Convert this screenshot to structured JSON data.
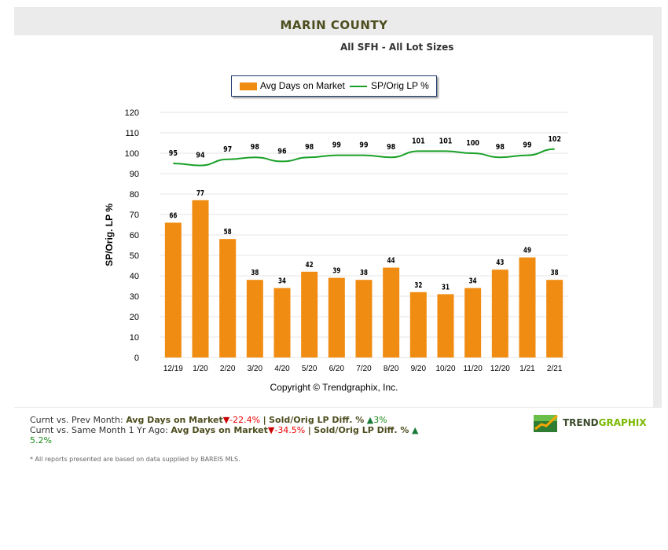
{
  "header": {
    "title": "MARIN COUNTY",
    "subtitle": "All SFH - All Lot Sizes"
  },
  "chart_data": {
    "type": "bar",
    "categories": [
      "12/19",
      "1/20",
      "2/20",
      "3/20",
      "4/20",
      "5/20",
      "6/20",
      "7/20",
      "8/20",
      "9/20",
      "10/20",
      "11/20",
      "12/20",
      "1/21",
      "2/21"
    ],
    "series": [
      {
        "name": "Avg Days on Market",
        "type": "bar",
        "color": "#f08c12",
        "values": [
          66,
          77,
          58,
          38,
          34,
          42,
          39,
          38,
          44,
          32,
          31,
          34,
          43,
          49,
          38
        ]
      },
      {
        "name": "SP/Orig LP %",
        "type": "line",
        "color": "#1aa028",
        "values": [
          95,
          94,
          97,
          98,
          96,
          98,
          99,
          99,
          98,
          101,
          101,
          100,
          98,
          99,
          102
        ]
      }
    ],
    "ylabel": "SP/Orig. LP %",
    "ylim": [
      0,
      120
    ],
    "yticks": [
      0,
      10,
      20,
      30,
      40,
      50,
      60,
      70,
      80,
      90,
      100,
      110,
      120
    ],
    "grid": true,
    "legend": "top"
  },
  "copyright": "Copyright © Trendgraphix, Inc.",
  "stats": {
    "row1_label": "Curnt vs. Prev Month:",
    "row1_metric1": "Avg Days on Market",
    "row1_value1": "-22.4%",
    "sep": "|",
    "row1_metric2": "Sold/Orig LP Diff. %",
    "row1_value2": "3%",
    "row2_label": "Curnt vs. Same Month 1 Yr Ago:",
    "row2_metric1": "Avg Days on Market",
    "row2_value1": "-34.5%",
    "row2_metric2": "Sold/Orig LP Diff. %",
    "row2_value2": "5.2%"
  },
  "footnote": "* All reports presented are based on data supplied by BAREIS MLS.",
  "logo": {
    "part1": "TREND",
    "part2": "GRAPHIX"
  }
}
